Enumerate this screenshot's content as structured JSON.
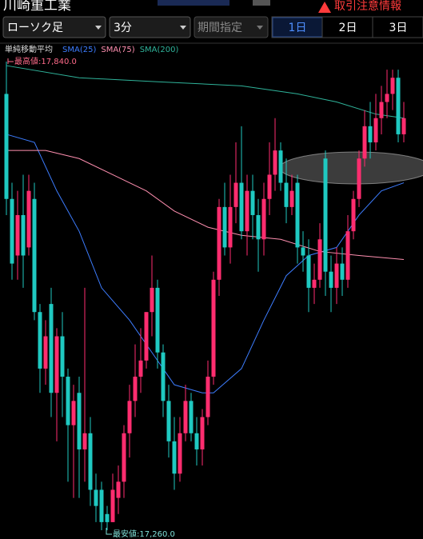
{
  "ui": {
    "title": "川崎重工業",
    "warning": "取引注意情報",
    "chart_kind": "ローソク足",
    "interval": "3分",
    "period": "期間指定",
    "ranges": [
      "1日",
      "2日",
      "3日"
    ],
    "legend_title": "単純移動平均",
    "high_label": "最高値:17,840.0",
    "low_label": "最安値:17,260.0"
  },
  "chart_data": {
    "type": "candlestick",
    "up_color": "#ff2d6f",
    "down_color": "#1fc9c1",
    "ylim": [
      17250,
      17870
    ],
    "open": [
      17800,
      17670,
      17600,
      17650,
      17610,
      17670,
      17530,
      17460,
      17540,
      17430,
      17500,
      17450,
      17390,
      17430,
      17360,
      17380,
      17310,
      17310,
      17280,
      17270,
      17300,
      17320,
      17380,
      17420,
      17450,
      17470,
      17530,
      17560,
      17480,
      17420,
      17370,
      17330,
      17380,
      17420,
      17380,
      17360,
      17400,
      17450,
      17570,
      17660,
      17610,
      17660,
      17690,
      17630,
      17680,
      17650,
      17620,
      17670,
      17700,
      17730,
      17690,
      17660,
      17690,
      17610,
      17600,
      17560,
      17570,
      17720,
      17580,
      17560,
      17590,
      17570,
      17630,
      17670,
      17720,
      17760,
      17740,
      17770,
      17790,
      17800,
      17820,
      17750
    ],
    "close": [
      17670,
      17590,
      17650,
      17600,
      17680,
      17530,
      17460,
      17500,
      17430,
      17500,
      17450,
      17390,
      17420,
      17360,
      17380,
      17310,
      17290,
      17270,
      17270,
      17310,
      17320,
      17380,
      17420,
      17450,
      17470,
      17530,
      17560,
      17480,
      17420,
      17370,
      17330,
      17380,
      17420,
      17380,
      17360,
      17400,
      17450,
      17570,
      17660,
      17610,
      17660,
      17690,
      17630,
      17680,
      17650,
      17620,
      17670,
      17700,
      17730,
      17690,
      17660,
      17680,
      17610,
      17600,
      17560,
      17570,
      17620,
      17580,
      17560,
      17590,
      17570,
      17630,
      17670,
      17720,
      17760,
      17740,
      17770,
      17790,
      17800,
      17820,
      17750,
      17770
    ],
    "high": [
      17840,
      17690,
      17680,
      17700,
      17700,
      17690,
      17540,
      17520,
      17560,
      17510,
      17530,
      17460,
      17440,
      17450,
      17560,
      17400,
      17330,
      17320,
      17290,
      17330,
      17340,
      17390,
      17440,
      17490,
      17510,
      17530,
      17600,
      17570,
      17490,
      17440,
      17400,
      17400,
      17440,
      17430,
      17400,
      17410,
      17470,
      17580,
      17670,
      17690,
      17700,
      17740,
      17760,
      17700,
      17700,
      17670,
      17690,
      17740,
      17770,
      17740,
      17720,
      17700,
      17700,
      17630,
      17620,
      17590,
      17640,
      17730,
      17600,
      17610,
      17610,
      17650,
      17680,
      17730,
      17780,
      17790,
      17800,
      17810,
      17830,
      17830,
      17830,
      17790
    ],
    "low": [
      17650,
      17570,
      17570,
      17560,
      17600,
      17520,
      17430,
      17440,
      17400,
      17370,
      17400,
      17320,
      17300,
      17300,
      17320,
      17290,
      17270,
      17260,
      17260,
      17270,
      17280,
      17300,
      17350,
      17400,
      17430,
      17460,
      17500,
      17460,
      17400,
      17350,
      17310,
      17320,
      17370,
      17370,
      17340,
      17340,
      17390,
      17440,
      17550,
      17600,
      17590,
      17640,
      17620,
      17600,
      17620,
      17580,
      17600,
      17650,
      17680,
      17680,
      17640,
      17650,
      17590,
      17580,
      17530,
      17540,
      17560,
      17550,
      17530,
      17540,
      17550,
      17560,
      17620,
      17660,
      17710,
      17720,
      17730,
      17750,
      17770,
      17780,
      17740,
      17740
    ],
    "series": [
      {
        "name": "SMA(25)",
        "color": "#3d7dff",
        "x": [
          0,
          5,
          9,
          13,
          17,
          22,
          26,
          30,
          35,
          37,
          42,
          46,
          50,
          54,
          59,
          63,
          67,
          71
        ],
        "values": [
          17750,
          17740,
          17680,
          17630,
          17560,
          17520,
          17480,
          17440,
          17430,
          17430,
          17460,
          17520,
          17575,
          17600,
          17610,
          17650,
          17680,
          17690
        ]
      },
      {
        "name": "SMA(75)",
        "color": "#ff8fb0",
        "x": [
          0,
          7,
          13,
          19,
          25,
          30,
          36,
          42,
          49,
          56,
          63,
          71
        ],
        "values": [
          17730,
          17730,
          17720,
          17700,
          17680,
          17655,
          17635,
          17625,
          17620,
          17605,
          17600,
          17595
        ]
      },
      {
        "name": "SMA(200)",
        "color": "#2fb39a",
        "x": [
          0,
          13,
          27,
          42,
          52,
          59,
          66,
          71
        ],
        "values": [
          17835,
          17820,
          17815,
          17810,
          17800,
          17790,
          17775,
          17770
        ]
      }
    ]
  }
}
